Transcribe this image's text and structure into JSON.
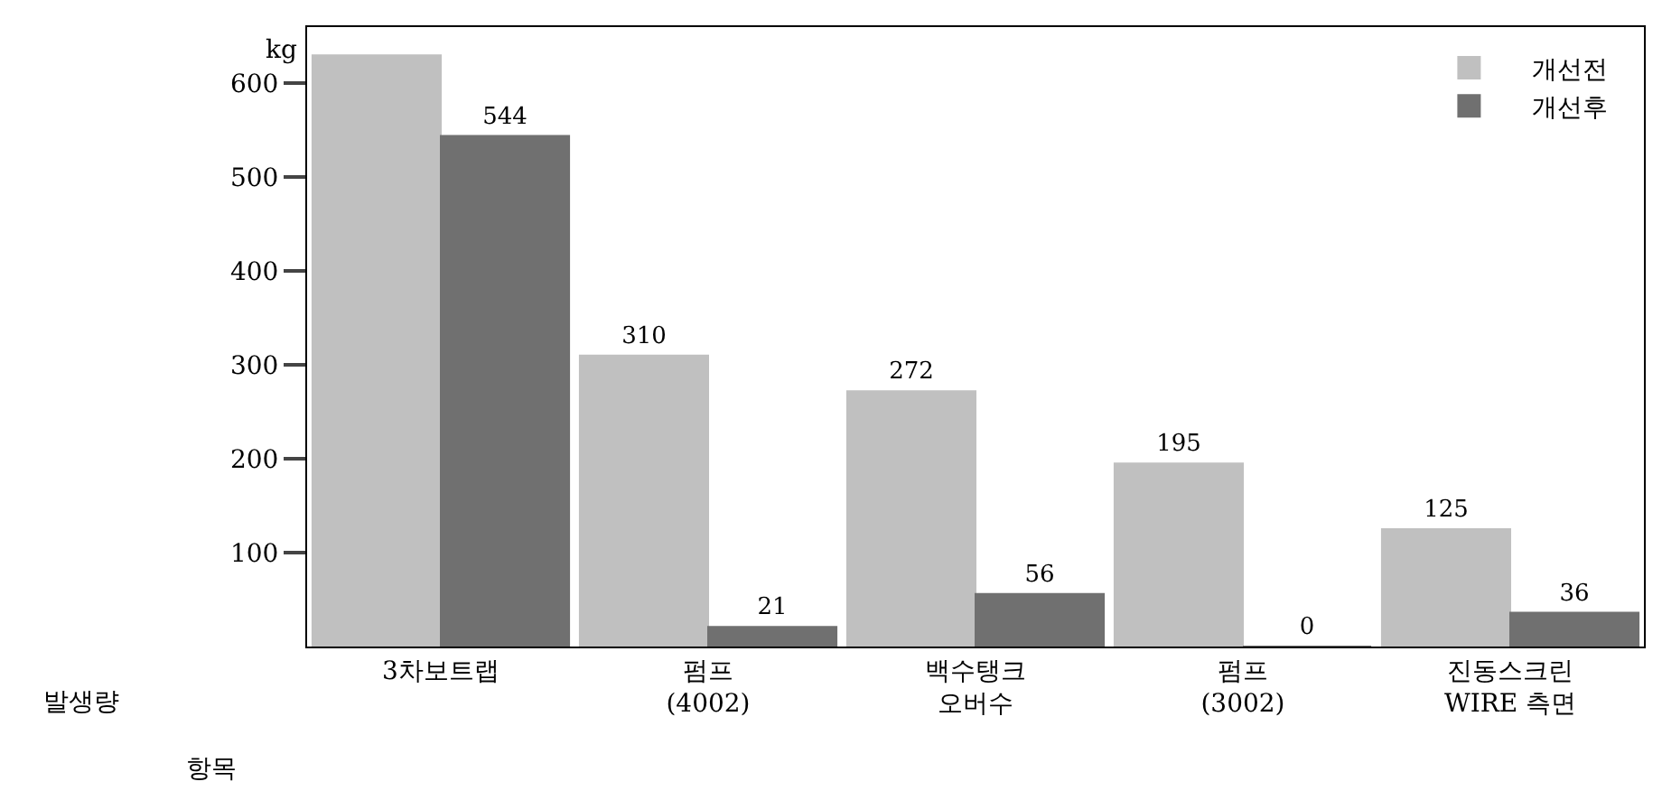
{
  "chart_data": {
    "type": "bar",
    "ylabel": "kg",
    "categories": [
      "3차보트랩",
      "펌프\n(4002)",
      "백수탱크\n오버수",
      "펌프\n(3002)",
      "진동스크린\nWIRE 측면"
    ],
    "series": [
      {
        "name": "개선전",
        "color": "#c0c0c0",
        "values": [
          630,
          310,
          272,
          195,
          125
        ],
        "value_labels": [
          null,
          "310",
          "272",
          "195",
          "125"
        ]
      },
      {
        "name": "개선후",
        "color": "#707070",
        "values": [
          544,
          21,
          56,
          0,
          36
        ],
        "value_labels": [
          "544",
          "21",
          "56",
          "0",
          "36"
        ]
      }
    ],
    "annotations": [
      "발생량",
      "항목"
    ],
    "ylim": [
      0,
      660
    ],
    "yticks": [
      100,
      200,
      300,
      400,
      500,
      600
    ],
    "legend": "top right"
  }
}
